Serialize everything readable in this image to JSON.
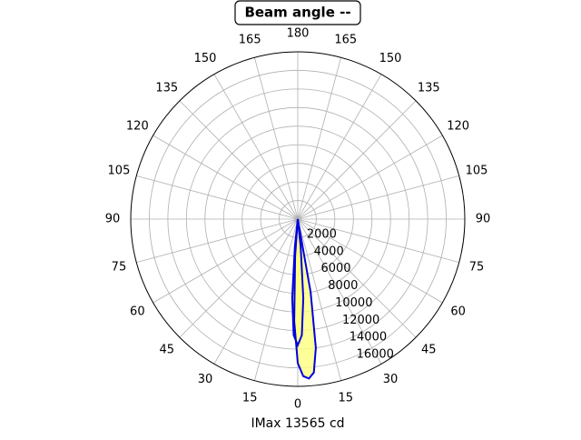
{
  "chart_data": {
    "type": "polar",
    "title": "Beam angle --",
    "xlabel": "IMax 13565 cd",
    "rlim": [
      0,
      18000
    ],
    "rticks": [
      2000,
      4000,
      6000,
      8000,
      10000,
      12000,
      14000,
      16000
    ],
    "thetaticks": [
      {
        "value": 0,
        "label": "0"
      },
      {
        "value": 15,
        "label": "15"
      },
      {
        "value": 30,
        "label": "30"
      },
      {
        "value": 45,
        "label": "45"
      },
      {
        "value": 60,
        "label": "60"
      },
      {
        "value": 75,
        "label": "75"
      },
      {
        "value": 90,
        "label": "90"
      },
      {
        "value": 105,
        "label": "105"
      },
      {
        "value": 120,
        "label": "120"
      },
      {
        "value": 135,
        "label": "135"
      },
      {
        "value": 150,
        "label": "150"
      },
      {
        "value": 165,
        "label": "165"
      },
      {
        "value": 180,
        "label": "180"
      },
      {
        "value": 195,
        "label": "165"
      },
      {
        "value": 210,
        "label": "150"
      },
      {
        "value": 225,
        "label": "135"
      },
      {
        "value": 240,
        "label": "120"
      },
      {
        "value": 255,
        "label": "105"
      },
      {
        "value": 270,
        "label": "90"
      },
      {
        "value": 285,
        "label": "75"
      },
      {
        "value": 300,
        "label": "60"
      },
      {
        "value": 315,
        "label": "45"
      },
      {
        "value": 330,
        "label": "30"
      },
      {
        "value": 345,
        "label": "15"
      }
    ],
    "grid": true,
    "fill_color": "#ffff80",
    "series": [
      {
        "color": "#0000dd",
        "theta": [
          -8,
          -6,
          -4,
          -2,
          0,
          2,
          4,
          6,
          8
        ],
        "values": [
          0,
          3000,
          8500,
          12500,
          13565,
          12500,
          8500,
          3000,
          0
        ]
      },
      {
        "color": "#0000dd",
        "theta": [
          -6,
          -4,
          -2,
          0,
          2,
          4,
          6,
          8,
          10,
          12
        ],
        "values": [
          0,
          4000,
          11000,
          15500,
          16900,
          17200,
          16600,
          14000,
          8000,
          0
        ]
      }
    ]
  }
}
